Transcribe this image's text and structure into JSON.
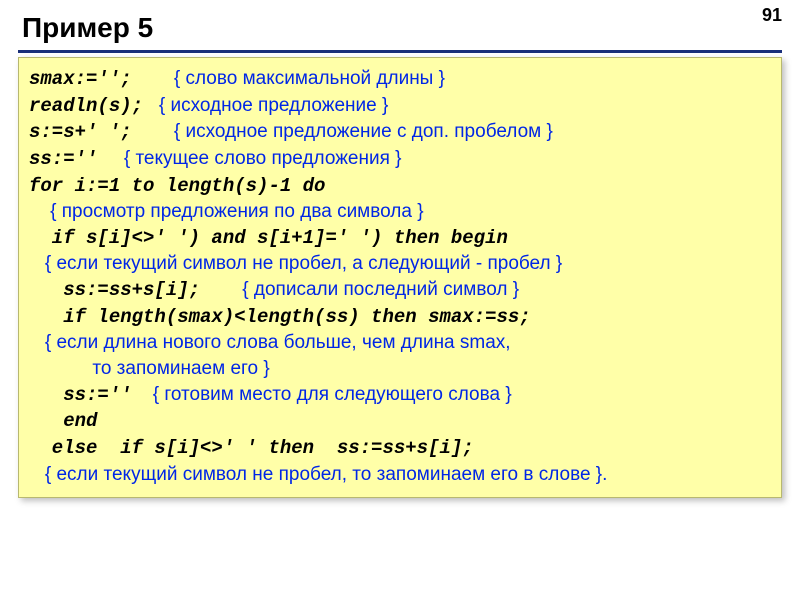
{
  "pageNumber": "91",
  "title": "Пример 5",
  "colors": {
    "background": "#ffffff",
    "codeBoxBg": "#ffffa8",
    "codeBoxBorder": "#b8b870",
    "titleUnderline": "#1a2f7a",
    "codeColor": "#000000",
    "commentColor": "#0026e6"
  },
  "lines": [
    {
      "spans": [
        {
          "t": "code",
          "v": "smax:='';"
        },
        {
          "t": "comment",
          "v": "        { слово максимальной длины }"
        }
      ]
    },
    {
      "spans": [
        {
          "t": "code",
          "v": "readln(s);"
        },
        {
          "t": "comment",
          "v": "   { исходное предложение }"
        }
      ]
    },
    {
      "spans": [
        {
          "t": "code",
          "v": "s:=s+' ';"
        },
        {
          "t": "comment",
          "v": "        { исходное предложение с доп. пробелом }"
        }
      ]
    },
    {
      "spans": [
        {
          "t": "code",
          "v": "ss:=''"
        },
        {
          "t": "comment",
          "v": "     { текущее слово предложения }"
        }
      ]
    },
    {
      "spans": [
        {
          "t": "code",
          "v": "for i:=1 to length(s)-1 do"
        }
      ]
    },
    {
      "spans": [
        {
          "t": "comment",
          "v": "    { просмотр предложения по два символа }"
        }
      ]
    },
    {
      "spans": [
        {
          "t": "code",
          "v": "  if s[i]<>' ') and s[i+1]=' ') then begin"
        }
      ]
    },
    {
      "spans": [
        {
          "t": "comment",
          "v": "   { если текущий символ не пробел, а следующий - пробел }"
        }
      ]
    },
    {
      "spans": [
        {
          "t": "code",
          "v": "   ss:=ss+s[i];"
        },
        {
          "t": "comment",
          "v": "        { дописали последний символ }"
        }
      ]
    },
    {
      "spans": [
        {
          "t": "code",
          "v": "   if length(smax)<length(ss) then smax:=ss;"
        }
      ]
    },
    {
      "spans": [
        {
          "t": "comment",
          "v": "   { если длина нового слова больше, чем длина smax,"
        }
      ]
    },
    {
      "spans": [
        {
          "t": "comment",
          "v": "            то запоминаем его }"
        }
      ]
    },
    {
      "spans": [
        {
          "t": "code",
          "v": "   ss:=''"
        },
        {
          "t": "comment",
          "v": "    { готовим место для следующего слова }"
        }
      ]
    },
    {
      "spans": [
        {
          "t": "code",
          "v": "   end"
        }
      ]
    },
    {
      "spans": [
        {
          "t": "code",
          "v": "  else  if s[i]<>' ' then  ss:=ss+s[i];"
        }
      ]
    },
    {
      "spans": [
        {
          "t": "comment",
          "v": "   { если текущий символ не пробел, то запоминаем его в слове }."
        }
      ]
    }
  ]
}
